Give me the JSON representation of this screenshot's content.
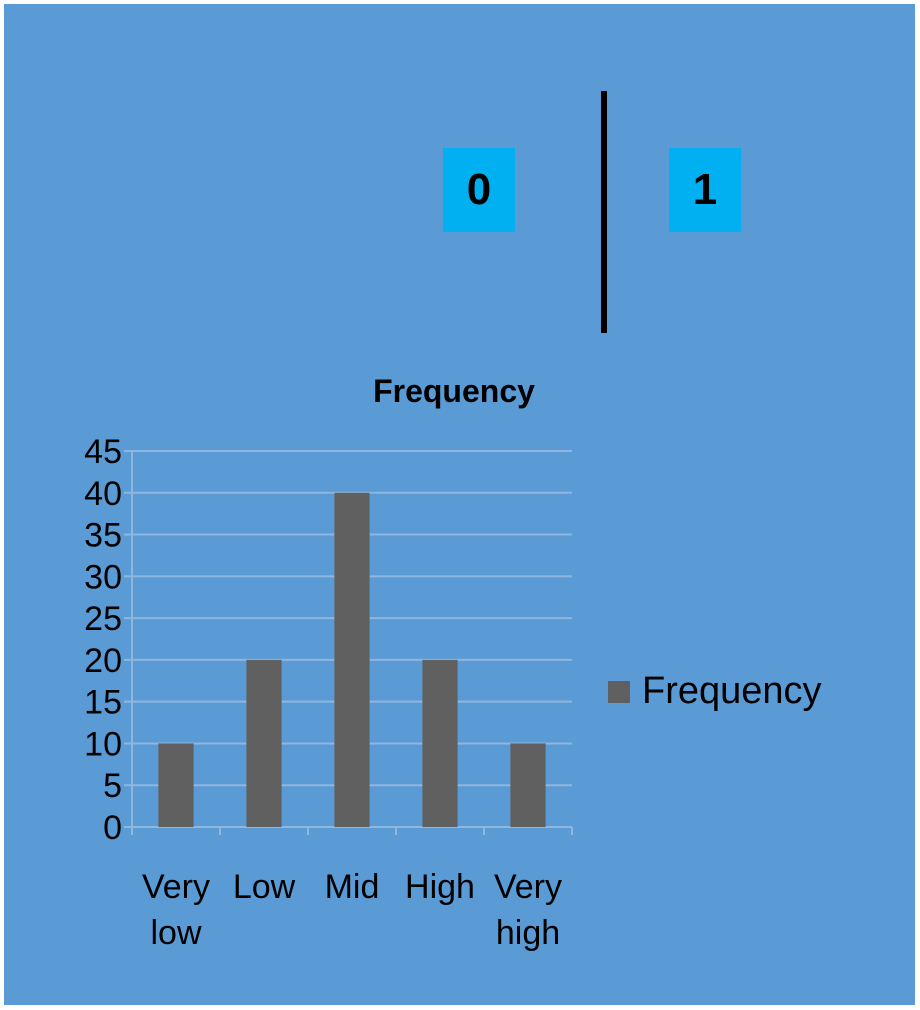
{
  "boxes": [
    {
      "label": "0"
    },
    {
      "label": "1"
    }
  ],
  "colors": {
    "background": "#5b9bd5",
    "box": "#00b0f0",
    "bar": "#606060",
    "gridline": "#8fb6de"
  },
  "chart_data": {
    "type": "bar",
    "title": "Frequency",
    "categories": [
      [
        "Very",
        "low"
      ],
      [
        "Low"
      ],
      [
        "Mid"
      ],
      [
        "High"
      ],
      [
        "Very",
        "high"
      ]
    ],
    "series": [
      {
        "name": "Frequency",
        "values": [
          10,
          20,
          40,
          20,
          10
        ]
      }
    ],
    "ylim": [
      0,
      45
    ],
    "yticks": [
      0,
      5,
      10,
      15,
      20,
      25,
      30,
      35,
      40,
      45
    ],
    "grid": true,
    "legend": "right"
  }
}
